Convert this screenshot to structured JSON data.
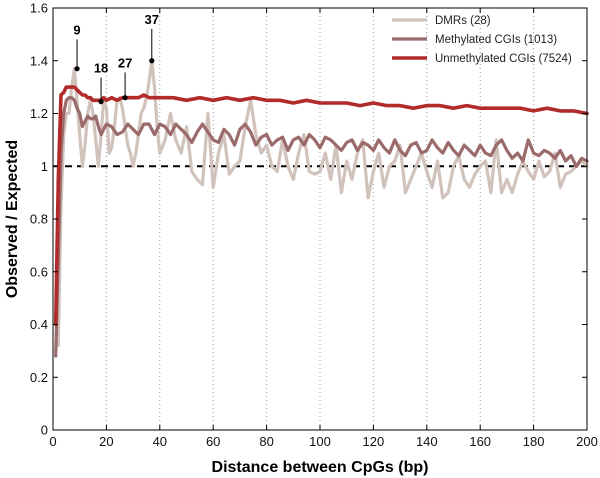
{
  "chart_data": {
    "type": "line",
    "title": "",
    "xlabel": "Distance between CpGs (bp)",
    "ylabel": "Observed / Expected",
    "xlim": [
      0,
      200
    ],
    "ylim": [
      0,
      1.6
    ],
    "xticks": [
      0,
      20,
      40,
      60,
      80,
      100,
      120,
      140,
      160,
      180,
      200
    ],
    "yticks": [
      0,
      0.2,
      0.4,
      0.6,
      0.8,
      1,
      1.2,
      1.4,
      1.6
    ],
    "xtick_labels": [
      "0",
      "20",
      "40",
      "60",
      "80",
      "100",
      "120",
      "140",
      "160",
      "180",
      "200"
    ],
    "ytick_labels": [
      "0",
      "0.2",
      "0.4",
      "0.6",
      "0.8",
      "1",
      "1.2",
      "1.4",
      "1.6"
    ],
    "grid": "vertical dotted",
    "legend_position": "top-right",
    "reference_line": {
      "y": 1,
      "style": "dashed",
      "color": "#000000"
    },
    "series": [
      {
        "name": "DMRs (28)",
        "color": "#d2c2bc",
        "x": [
          2,
          3,
          4,
          5,
          6,
          7,
          8,
          9,
          10,
          11,
          12,
          13,
          14,
          15,
          16,
          17,
          18,
          19,
          20,
          21,
          22,
          23,
          24,
          25,
          26,
          27,
          28,
          29,
          30,
          31,
          32,
          33,
          34,
          35,
          36,
          37,
          38,
          39,
          40,
          42,
          44,
          46,
          48,
          50,
          52,
          54,
          56,
          58,
          60,
          62,
          64,
          66,
          68,
          70,
          72,
          74,
          76,
          78,
          80,
          82,
          84,
          86,
          88,
          90,
          92,
          94,
          96,
          98,
          100,
          102,
          104,
          106,
          108,
          110,
          112,
          114,
          116,
          118,
          120,
          122,
          124,
          126,
          128,
          130,
          132,
          134,
          136,
          138,
          140,
          142,
          144,
          146,
          148,
          150,
          152,
          154,
          156,
          158,
          160,
          162,
          164,
          166,
          168,
          170,
          172,
          174,
          176,
          178,
          180,
          182,
          184,
          186,
          188,
          190,
          192,
          194,
          196,
          198,
          200
        ],
        "y": [
          0.32,
          0.85,
          1.12,
          1.2,
          1.2,
          1.3,
          1.37,
          1.25,
          1.12,
          1.0,
          1.08,
          1.2,
          1.25,
          1.2,
          1.1,
          1.0,
          1.12,
          1.25,
          1.22,
          1.05,
          1.07,
          1.15,
          1.25,
          1.26,
          1.22,
          1.15,
          1.08,
          1.05,
          1.0,
          1.05,
          1.12,
          1.2,
          1.22,
          1.26,
          1.32,
          1.4,
          1.3,
          1.15,
          1.05,
          1.1,
          1.2,
          1.1,
          1.05,
          1.15,
          0.98,
          0.95,
          0.93,
          1.2,
          0.92,
          1.05,
          1.12,
          0.97,
          1.0,
          1.02,
          1.15,
          1.25,
          1.12,
          1.05,
          1.08,
          1.0,
          0.98,
          1.1,
          1.0,
          0.95,
          1.05,
          1.12,
          0.98,
          0.97,
          0.98,
          1.05,
          0.95,
          1.08,
          0.9,
          1.02,
          0.95,
          1.05,
          1.1,
          0.88,
          0.98,
          1.05,
          0.92,
          1.0,
          1.02,
          1.08,
          0.9,
          0.95,
          1.0,
          1.05,
          0.98,
          0.92,
          1.02,
          0.88,
          0.9,
          1.0,
          1.04,
          0.95,
          0.92,
          0.97,
          1.0,
          1.02,
          0.9,
          1.1,
          0.9,
          0.95,
          0.9,
          0.97,
          1.02,
          0.98,
          0.95,
          1.02,
          0.96,
          0.98,
          1.05,
          0.92,
          0.97,
          0.98,
          1.0,
          1.02,
          1.0
        ]
      },
      {
        "name": "Methylated CGIs (1013)",
        "color": "#9b6a6a",
        "x": [
          1,
          2,
          3,
          4,
          5,
          6,
          7,
          8,
          9,
          10,
          11,
          12,
          13,
          14,
          15,
          16,
          17,
          18,
          19,
          20,
          22,
          24,
          26,
          28,
          30,
          32,
          34,
          36,
          38,
          40,
          42,
          44,
          46,
          48,
          50,
          52,
          54,
          56,
          58,
          60,
          62,
          64,
          66,
          68,
          70,
          72,
          74,
          76,
          78,
          80,
          82,
          84,
          86,
          88,
          90,
          92,
          94,
          96,
          98,
          100,
          102,
          104,
          106,
          108,
          110,
          112,
          114,
          116,
          118,
          120,
          122,
          124,
          126,
          128,
          130,
          132,
          134,
          136,
          138,
          140,
          142,
          144,
          146,
          148,
          150,
          152,
          154,
          156,
          158,
          160,
          162,
          164,
          166,
          168,
          170,
          172,
          174,
          176,
          178,
          180,
          182,
          184,
          186,
          188,
          190,
          192,
          194,
          196,
          198,
          200
        ],
        "y": [
          0.28,
          0.65,
          1.05,
          1.2,
          1.25,
          1.26,
          1.26,
          1.25,
          1.22,
          1.2,
          1.15,
          1.17,
          1.19,
          1.18,
          1.18,
          1.19,
          1.15,
          1.12,
          1.14,
          1.16,
          1.15,
          1.12,
          1.13,
          1.16,
          1.14,
          1.12,
          1.16,
          1.16,
          1.12,
          1.16,
          1.15,
          1.12,
          1.16,
          1.14,
          1.12,
          1.09,
          1.13,
          1.16,
          1.13,
          1.1,
          1.09,
          1.14,
          1.12,
          1.08,
          1.14,
          1.16,
          1.13,
          1.08,
          1.11,
          1.12,
          1.08,
          1.1,
          1.11,
          1.06,
          1.1,
          1.11,
          1.08,
          1.12,
          1.1,
          1.07,
          1.11,
          1.1,
          1.08,
          1.06,
          1.09,
          1.1,
          1.06,
          1.09,
          1.08,
          1.06,
          1.1,
          1.07,
          1.05,
          1.1,
          1.06,
          1.04,
          1.08,
          1.09,
          1.05,
          1.06,
          1.1,
          1.07,
          1.05,
          1.09,
          1.06,
          1.04,
          1.08,
          1.06,
          1.04,
          1.08,
          1.05,
          1.04,
          1.08,
          1.1,
          1.06,
          1.03,
          1.05,
          1.02,
          1.1,
          1.05,
          1.04,
          1.06,
          1.05,
          1.03,
          1.06,
          1.02,
          1.04,
          1.0,
          1.03,
          1.02
        ]
      },
      {
        "name": "Unmethylated CGIs (7524)",
        "color": "#b22b2b",
        "x": [
          1,
          2,
          3,
          4,
          5,
          6,
          7,
          8,
          9,
          10,
          11,
          12,
          13,
          14,
          15,
          16,
          17,
          18,
          19,
          20,
          22,
          24,
          26,
          28,
          30,
          32,
          34,
          36,
          38,
          40,
          45,
          50,
          55,
          60,
          65,
          70,
          75,
          80,
          85,
          90,
          95,
          100,
          105,
          110,
          115,
          120,
          125,
          130,
          135,
          140,
          145,
          150,
          155,
          160,
          165,
          170,
          175,
          180,
          185,
          190,
          195,
          200
        ],
        "y": [
          0.4,
          0.95,
          1.27,
          1.28,
          1.3,
          1.3,
          1.3,
          1.3,
          1.29,
          1.28,
          1.27,
          1.27,
          1.26,
          1.26,
          1.25,
          1.25,
          1.25,
          1.25,
          1.26,
          1.25,
          1.26,
          1.25,
          1.26,
          1.26,
          1.26,
          1.26,
          1.27,
          1.26,
          1.26,
          1.26,
          1.26,
          1.25,
          1.26,
          1.25,
          1.26,
          1.25,
          1.26,
          1.25,
          1.25,
          1.24,
          1.25,
          1.24,
          1.24,
          1.24,
          1.23,
          1.24,
          1.23,
          1.23,
          1.22,
          1.23,
          1.23,
          1.22,
          1.23,
          1.22,
          1.22,
          1.22,
          1.22,
          1.21,
          1.22,
          1.21,
          1.21,
          1.2
        ]
      }
    ],
    "annotations": [
      {
        "label": "9",
        "x": 9,
        "y": 1.37,
        "label_x": 9,
        "label_y": 1.5
      },
      {
        "label": "18",
        "x": 18,
        "y": 1.245,
        "label_x": 18,
        "label_y": 1.355
      },
      {
        "label": "27",
        "x": 27,
        "y": 1.26,
        "label_x": 27,
        "label_y": 1.375
      },
      {
        "label": "37",
        "x": 37,
        "y": 1.4,
        "label_x": 37,
        "label_y": 1.54
      }
    ]
  }
}
